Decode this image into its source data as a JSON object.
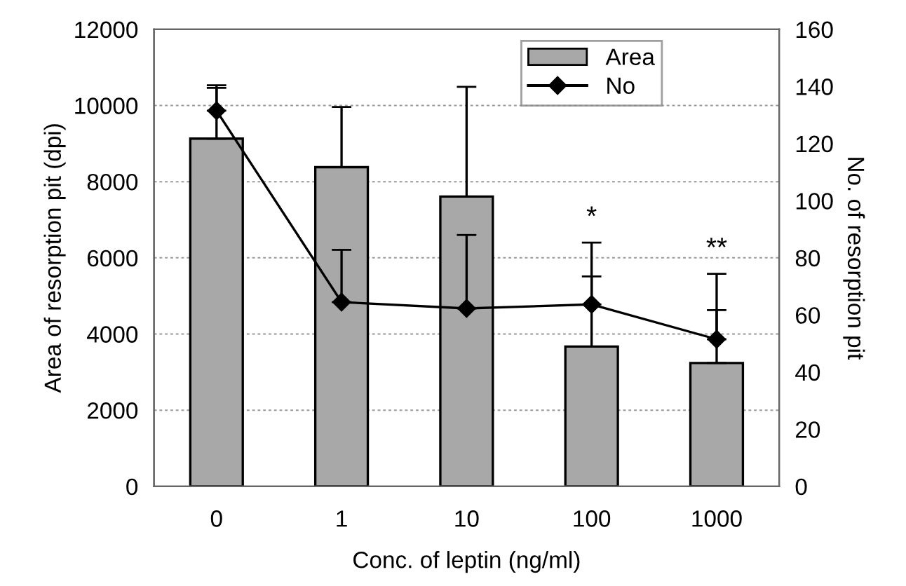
{
  "chart_data": {
    "type": "bar",
    "xlabel": "Conc. of leptin (ng/ml)",
    "ylabel": "Area of resorption pit (dpi)",
    "y2label": "No. of resorption pit",
    "categories": [
      "0",
      "1",
      "10",
      "100",
      "1000"
    ],
    "series": [
      {
        "name": "Area",
        "color": "#a8a8a8",
        "values": [
          9130,
          8380,
          7610,
          3670,
          3240
        ],
        "errors": [
          [
            9130,
            10530
          ],
          [
            8380,
            9960
          ],
          [
            7610,
            10490
          ],
          [
            3670,
            6400
          ],
          [
            3240,
            5580
          ]
        ]
      },
      {
        "name": "No",
        "type": "line",
        "axis": "y2",
        "color": "#000000",
        "marker": "diamond",
        "values": [
          131.5,
          64.5,
          62.3,
          63.7,
          51.5
        ],
        "errors": [
          [
            131.5,
            139.5
          ],
          [
            64.5,
            82.8
          ],
          [
            62.3,
            88
          ],
          [
            63.7,
            73.5
          ],
          [
            51.5,
            61.7
          ]
        ]
      }
    ],
    "ylim": [
      0,
      12000
    ],
    "yticks": [
      0,
      2000,
      4000,
      6000,
      8000,
      10000,
      12000
    ],
    "y2lim": [
      0,
      160
    ],
    "y2ticks": [
      0,
      20,
      40,
      60,
      80,
      100,
      120,
      140,
      160
    ],
    "annotations": [
      "*",
      "**"
    ],
    "grid": "y",
    "legend": "top"
  }
}
